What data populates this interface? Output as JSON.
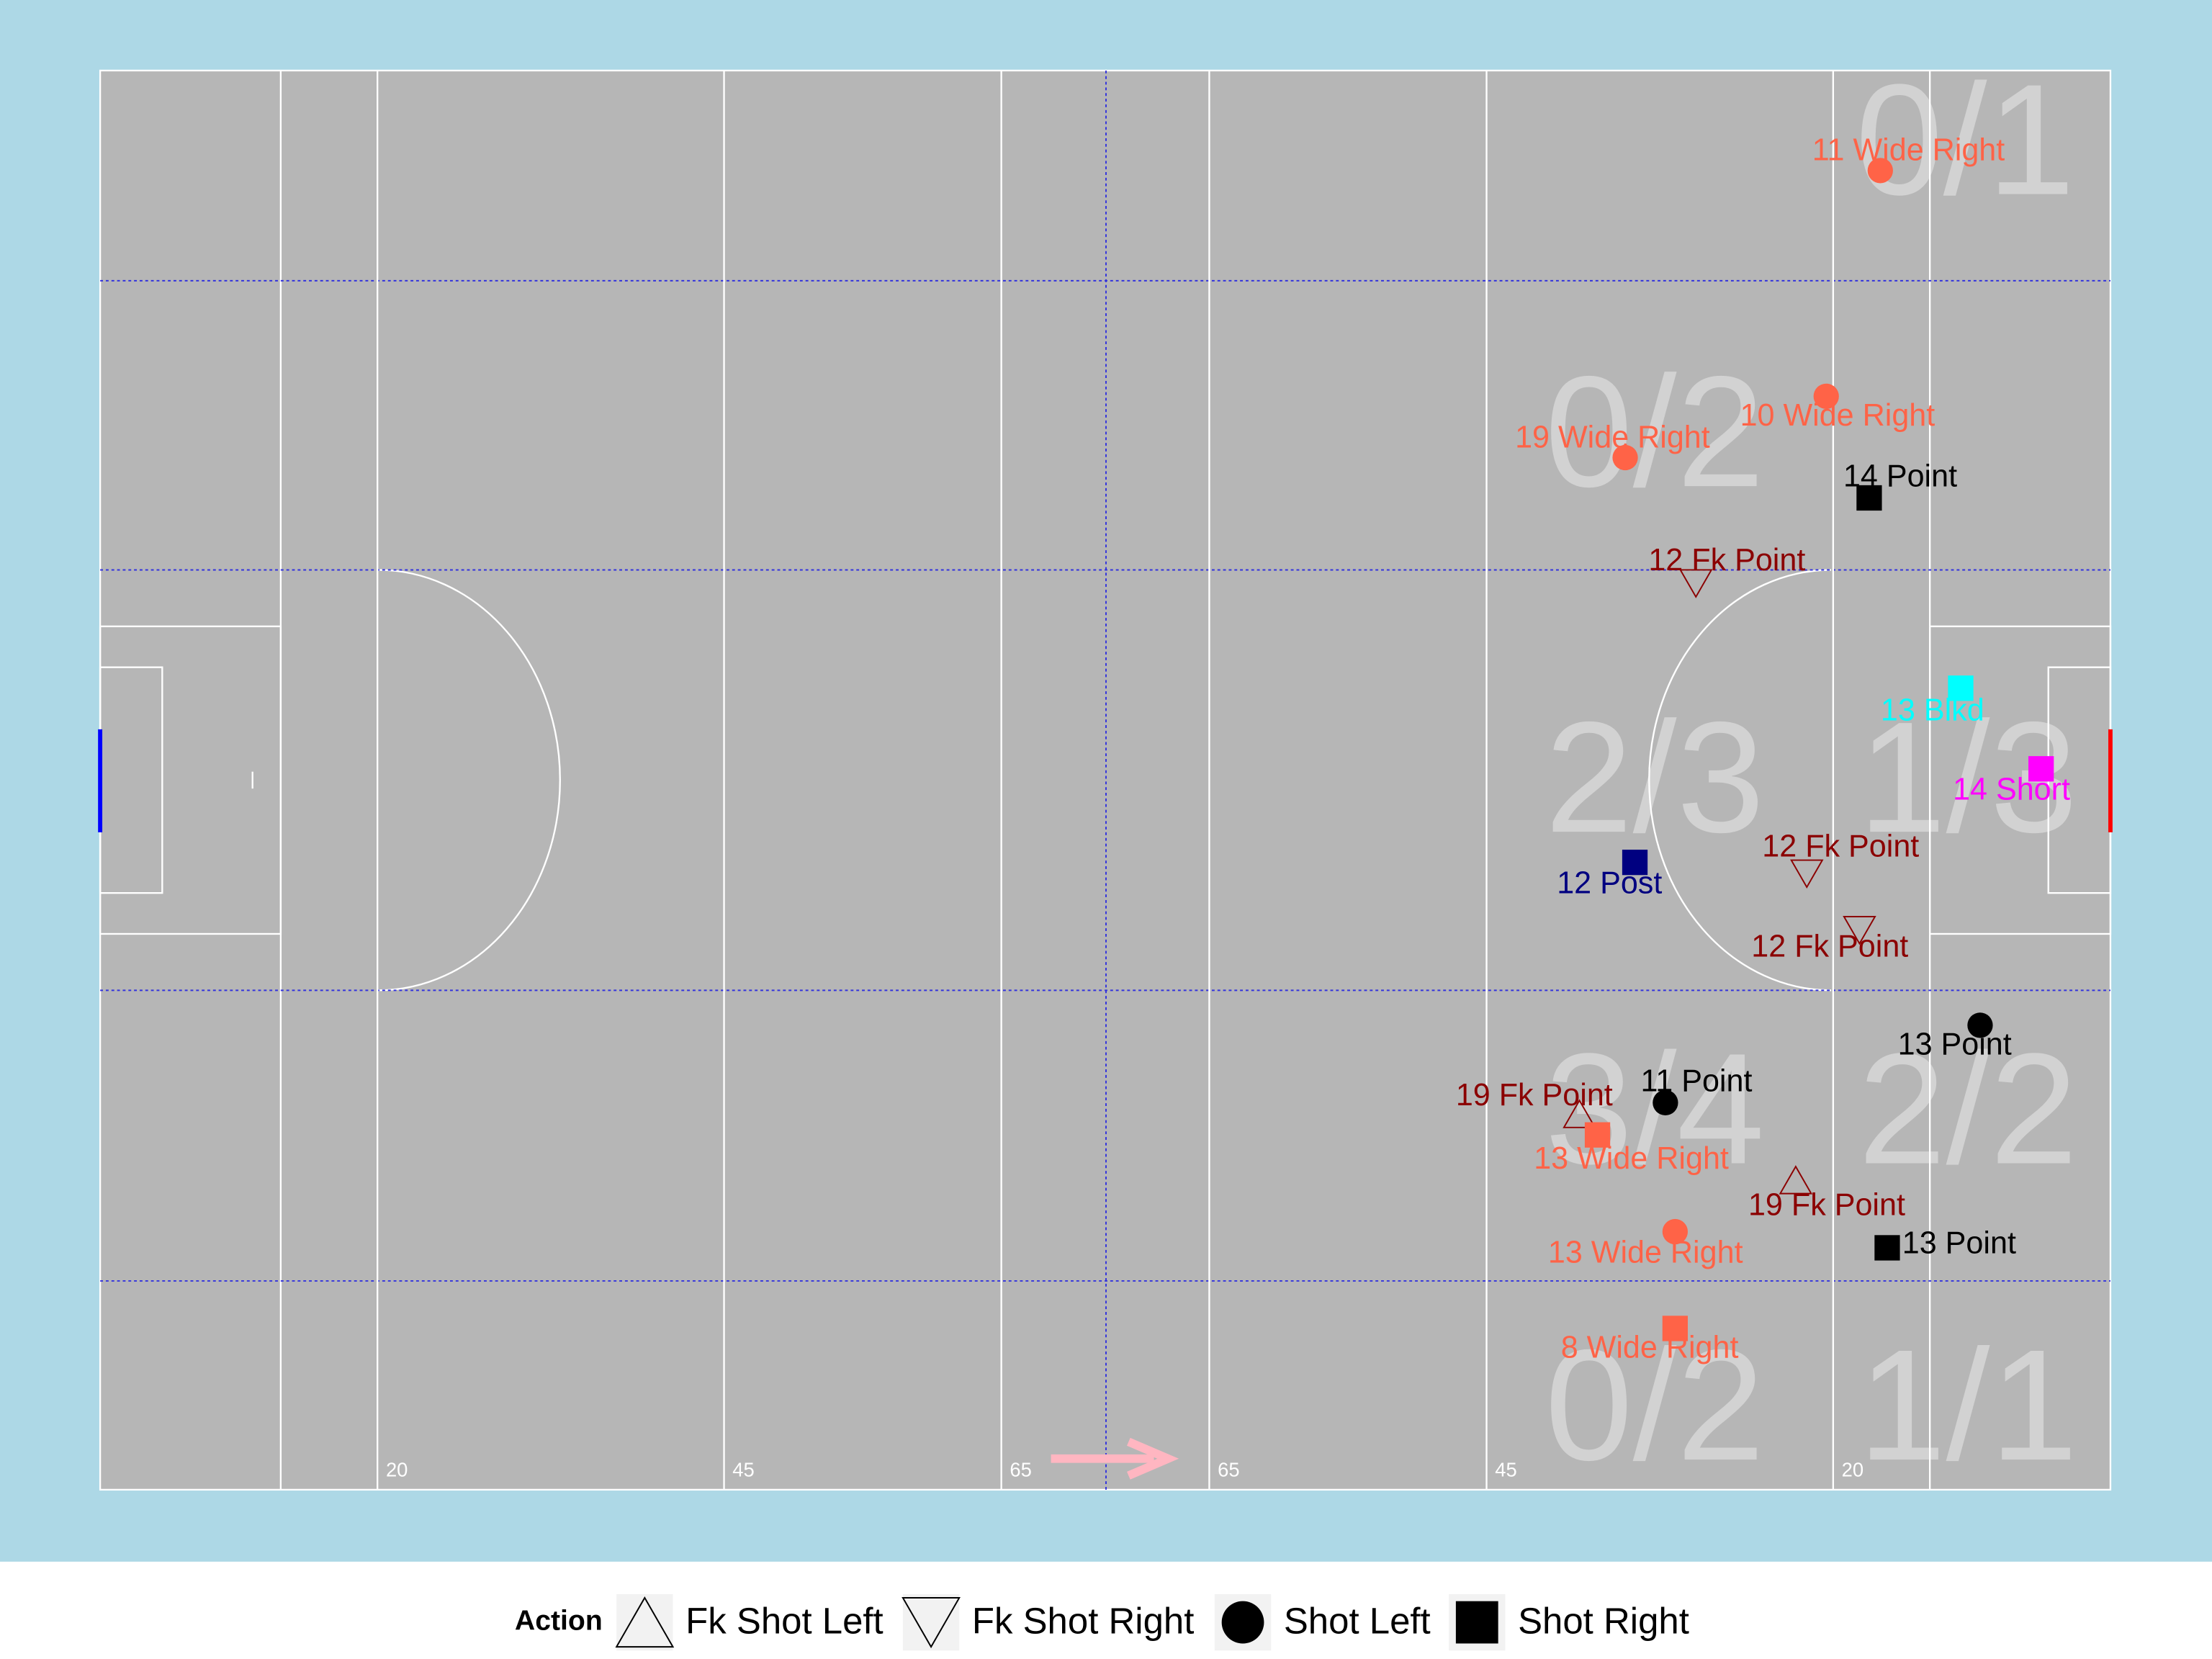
{
  "chart_data": {
    "type": "scatter",
    "xlim": [
      0,
      145
    ],
    "ylim": [
      0,
      88
    ],
    "xticks": [
      20,
      45,
      65,
      {
        "value": 80,
        "label": "65"
      },
      {
        "value": 100,
        "label": "45"
      },
      {
        "value": 125,
        "label": "20"
      }
    ],
    "zones": [
      "0/1",
      "0/2",
      "2/3",
      "1/3",
      "3/4",
      "2/2",
      "0/2",
      "1/1"
    ],
    "legend": {
      "title": "Action",
      "items": [
        {
          "name": "Fk Shot Left",
          "shape": "triangle-up"
        },
        {
          "name": "Fk Shot Right",
          "shape": "triangle-down"
        },
        {
          "name": "Shot Left",
          "shape": "circle"
        },
        {
          "name": "Shot Right",
          "shape": "square"
        }
      ]
    },
    "points": [
      {
        "label": "11 Wide Right",
        "x": 128.4,
        "y": 81.8,
        "action": "Shot Left",
        "color": "#FF6347"
      },
      {
        "label": "10 Wide Right",
        "x": 124.5,
        "y": 67.8,
        "action": "Shot Left",
        "color": "#FF6347"
      },
      {
        "label": "19 Wide Right",
        "x": 110.0,
        "y": 64.0,
        "action": "Shot Left",
        "color": "#FF6347"
      },
      {
        "label": "14 Point",
        "x": 127.6,
        "y": 61.5,
        "action": "Shot Right",
        "color": "#000000"
      },
      {
        "label": "12 Fk Point",
        "x": 115.1,
        "y": 56.2,
        "action": "Fk Shot Right",
        "color": "#8B0000"
      },
      {
        "label": "13 Blkd",
        "x": 134.2,
        "y": 49.7,
        "action": "Shot Right",
        "color": "#00FFFF"
      },
      {
        "label": "14 Short",
        "x": 140.0,
        "y": 44.7,
        "action": "Shot Right",
        "color": "#FF00FF"
      },
      {
        "label": "12 Post",
        "x": 110.7,
        "y": 38.9,
        "action": "Shot Right",
        "color": "#000080"
      },
      {
        "label": "12 Fk Point",
        "x": 123.1,
        "y": 38.2,
        "action": "Fk Shot Right",
        "color": "#8B0000"
      },
      {
        "label": "12 Fk Point",
        "x": 126.9,
        "y": 34.7,
        "action": "Fk Shot Right",
        "color": "#8B0000"
      },
      {
        "label": "13 Point",
        "x": 135.6,
        "y": 28.8,
        "action": "Shot Left",
        "color": "#000000"
      },
      {
        "label": "11 Point",
        "x": 112.9,
        "y": 24.0,
        "action": "Shot Left",
        "color": "#000000"
      },
      {
        "label": "19 Fk Point",
        "x": 106.7,
        "y": 23.3,
        "action": "Fk Shot Left",
        "color": "#8B0000"
      },
      {
        "label": "13 Wide Right",
        "x": 108.0,
        "y": 22.0,
        "action": "Shot Right",
        "color": "#FF6347"
      },
      {
        "label": "19 Fk Point",
        "x": 122.3,
        "y": 19.2,
        "action": "Fk Shot Left",
        "color": "#8B0000"
      },
      {
        "label": "13 Wide Right",
        "x": 113.6,
        "y": 16.0,
        "action": "Shot Left",
        "color": "#FF6347"
      },
      {
        "label": "13 Point",
        "x": 128.9,
        "y": 15.0,
        "action": "Shot Right",
        "color": "#000000"
      },
      {
        "label": "8 Wide Right",
        "x": 113.6,
        "y": 10.0,
        "action": "Shot Right",
        "color": "#FF6347"
      }
    ]
  }
}
